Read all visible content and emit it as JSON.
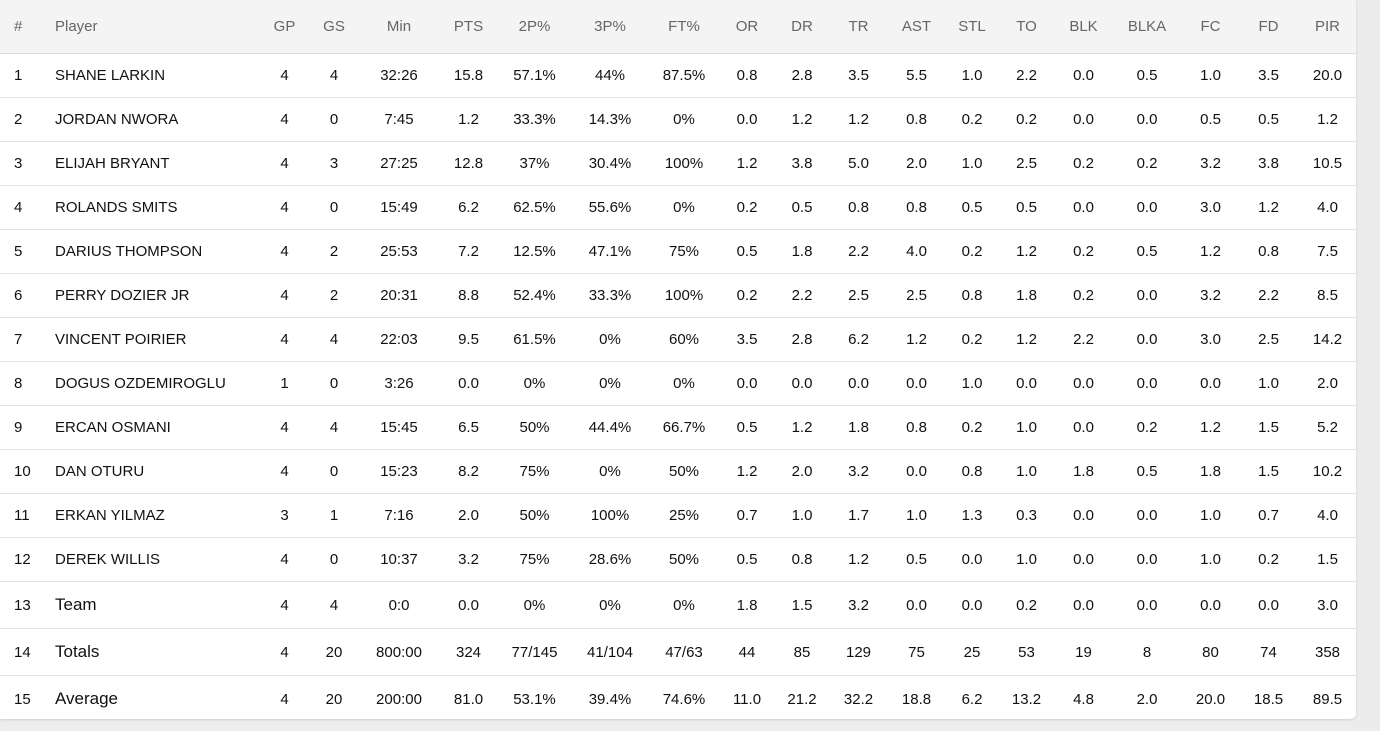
{
  "table": {
    "columns": [
      "#",
      "Player",
      "GP",
      "GS",
      "Min",
      "PTS",
      "2P%",
      "3P%",
      "FT%",
      "OR",
      "DR",
      "TR",
      "AST",
      "STL",
      "TO",
      "BLK",
      "BLKA",
      "FC",
      "FD",
      "PIR"
    ],
    "rows": [
      [
        "1",
        "SHANE LARKIN",
        "4",
        "4",
        "32:26",
        "15.8",
        "57.1%",
        "44%",
        "87.5%",
        "0.8",
        "2.8",
        "3.5",
        "5.5",
        "1.0",
        "2.2",
        "0.0",
        "0.5",
        "1.0",
        "3.5",
        "20.0"
      ],
      [
        "2",
        "JORDAN NWORA",
        "4",
        "0",
        "7:45",
        "1.2",
        "33.3%",
        "14.3%",
        "0%",
        "0.0",
        "1.2",
        "1.2",
        "0.8",
        "0.2",
        "0.2",
        "0.0",
        "0.0",
        "0.5",
        "0.5",
        "1.2"
      ],
      [
        "3",
        "ELIJAH BRYANT",
        "4",
        "3",
        "27:25",
        "12.8",
        "37%",
        "30.4%",
        "100%",
        "1.2",
        "3.8",
        "5.0",
        "2.0",
        "1.0",
        "2.5",
        "0.2",
        "0.2",
        "3.2",
        "3.8",
        "10.5"
      ],
      [
        "4",
        "ROLANDS SMITS",
        "4",
        "0",
        "15:49",
        "6.2",
        "62.5%",
        "55.6%",
        "0%",
        "0.2",
        "0.5",
        "0.8",
        "0.8",
        "0.5",
        "0.5",
        "0.0",
        "0.0",
        "3.0",
        "1.2",
        "4.0"
      ],
      [
        "5",
        "DARIUS THOMPSON",
        "4",
        "2",
        "25:53",
        "7.2",
        "12.5%",
        "47.1%",
        "75%",
        "0.5",
        "1.8",
        "2.2",
        "4.0",
        "0.2",
        "1.2",
        "0.2",
        "0.5",
        "1.2",
        "0.8",
        "7.5"
      ],
      [
        "6",
        "PERRY DOZIER JR",
        "4",
        "2",
        "20:31",
        "8.8",
        "52.4%",
        "33.3%",
        "100%",
        "0.2",
        "2.2",
        "2.5",
        "2.5",
        "0.8",
        "1.8",
        "0.2",
        "0.0",
        "3.2",
        "2.2",
        "8.5"
      ],
      [
        "7",
        "VINCENT POIRIER",
        "4",
        "4",
        "22:03",
        "9.5",
        "61.5%",
        "0%",
        "60%",
        "3.5",
        "2.8",
        "6.2",
        "1.2",
        "0.2",
        "1.2",
        "2.2",
        "0.0",
        "3.0",
        "2.5",
        "14.2"
      ],
      [
        "8",
        "DOGUS OZDEMIROGLU",
        "1",
        "0",
        "3:26",
        "0.0",
        "0%",
        "0%",
        "0%",
        "0.0",
        "0.0",
        "0.0",
        "0.0",
        "1.0",
        "0.0",
        "0.0",
        "0.0",
        "0.0",
        "1.0",
        "2.0"
      ],
      [
        "9",
        "ERCAN OSMANI",
        "4",
        "4",
        "15:45",
        "6.5",
        "50%",
        "44.4%",
        "66.7%",
        "0.5",
        "1.2",
        "1.8",
        "0.8",
        "0.2",
        "1.0",
        "0.0",
        "0.2",
        "1.2",
        "1.5",
        "5.2"
      ],
      [
        "10",
        "DAN OTURU",
        "4",
        "0",
        "15:23",
        "8.2",
        "75%",
        "0%",
        "50%",
        "1.2",
        "2.0",
        "3.2",
        "0.0",
        "0.8",
        "1.0",
        "1.8",
        "0.5",
        "1.8",
        "1.5",
        "10.2"
      ],
      [
        "11",
        "ERKAN YILMAZ",
        "3",
        "1",
        "7:16",
        "2.0",
        "50%",
        "100%",
        "25%",
        "0.7",
        "1.0",
        "1.7",
        "1.0",
        "1.3",
        "0.3",
        "0.0",
        "0.0",
        "1.0",
        "0.7",
        "4.0"
      ],
      [
        "12",
        "DEREK WILLIS",
        "4",
        "0",
        "10:37",
        "3.2",
        "75%",
        "28.6%",
        "50%",
        "0.5",
        "0.8",
        "1.2",
        "0.5",
        "0.0",
        "1.0",
        "0.0",
        "0.0",
        "1.0",
        "0.2",
        "1.5"
      ],
      [
        "13",
        "Team",
        "4",
        "4",
        "0:0",
        "0.0",
        "0%",
        "0%",
        "0%",
        "1.8",
        "1.5",
        "3.2",
        "0.0",
        "0.0",
        "0.2",
        "0.0",
        "0.0",
        "0.0",
        "0.0",
        "3.0"
      ],
      [
        "14",
        "Totals",
        "4",
        "20",
        "800:00",
        "324",
        "77/145",
        "41/104",
        "47/63",
        "44",
        "85",
        "129",
        "75",
        "25",
        "53",
        "19",
        "8",
        "80",
        "74",
        "358"
      ],
      [
        "15",
        "Average",
        "4",
        "20",
        "200:00",
        "81.0",
        "53.1%",
        "39.4%",
        "74.6%",
        "11.0",
        "21.2",
        "32.2",
        "18.8",
        "6.2",
        "13.2",
        "4.8",
        "2.0",
        "20.0",
        "18.5",
        "89.5"
      ]
    ],
    "summary_rows": [
      12,
      13,
      14
    ]
  }
}
